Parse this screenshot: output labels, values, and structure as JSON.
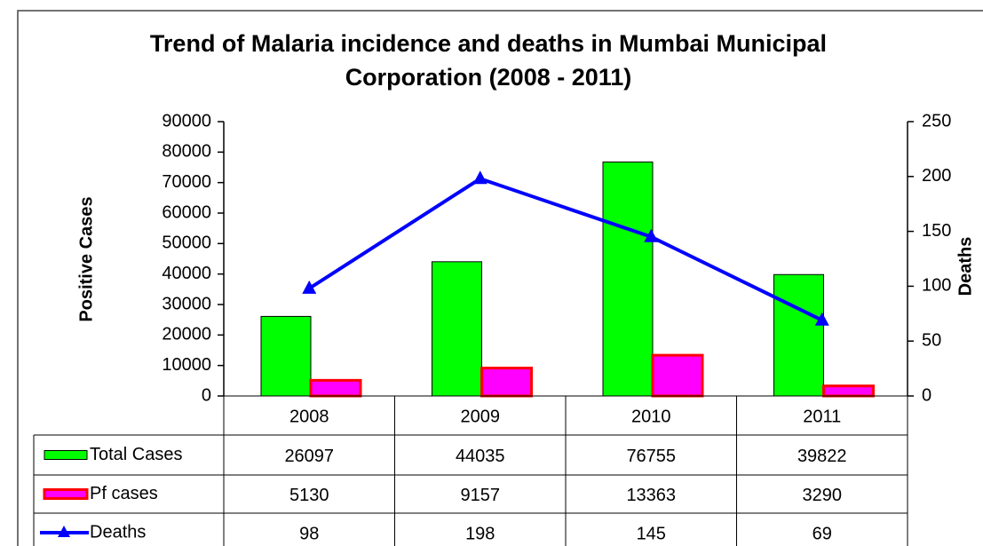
{
  "chart_data": {
    "type": "bar",
    "title": "Trend of Malaria incidence and deaths in Mumbai Municipal Corporation (2008 - 2011)",
    "y_label": "Positive Cases",
    "y2_label": "Deaths",
    "categories": [
      "2008",
      "2009",
      "2010",
      "2011"
    ],
    "series": [
      {
        "name": "Total Cases",
        "type": "bar",
        "color": "#00ff00",
        "values": [
          26097,
          44035,
          76755,
          39822
        ]
      },
      {
        "name": "Pf cases",
        "type": "bar",
        "color": "#ff00ff",
        "values": [
          5130,
          9157,
          13363,
          3290
        ]
      },
      {
        "name": "Deaths",
        "type": "line",
        "color": "#0000ff",
        "axis": "y2",
        "values": [
          98,
          198,
          145,
          69
        ]
      }
    ],
    "ylim": [
      0,
      90000
    ],
    "yticks": [
      0,
      10000,
      20000,
      30000,
      40000,
      50000,
      60000,
      70000,
      80000,
      90000
    ],
    "y2lim": [
      0,
      250
    ],
    "y2ticks": [
      0,
      50,
      100,
      150,
      200,
      250
    ],
    "data_table": true
  }
}
